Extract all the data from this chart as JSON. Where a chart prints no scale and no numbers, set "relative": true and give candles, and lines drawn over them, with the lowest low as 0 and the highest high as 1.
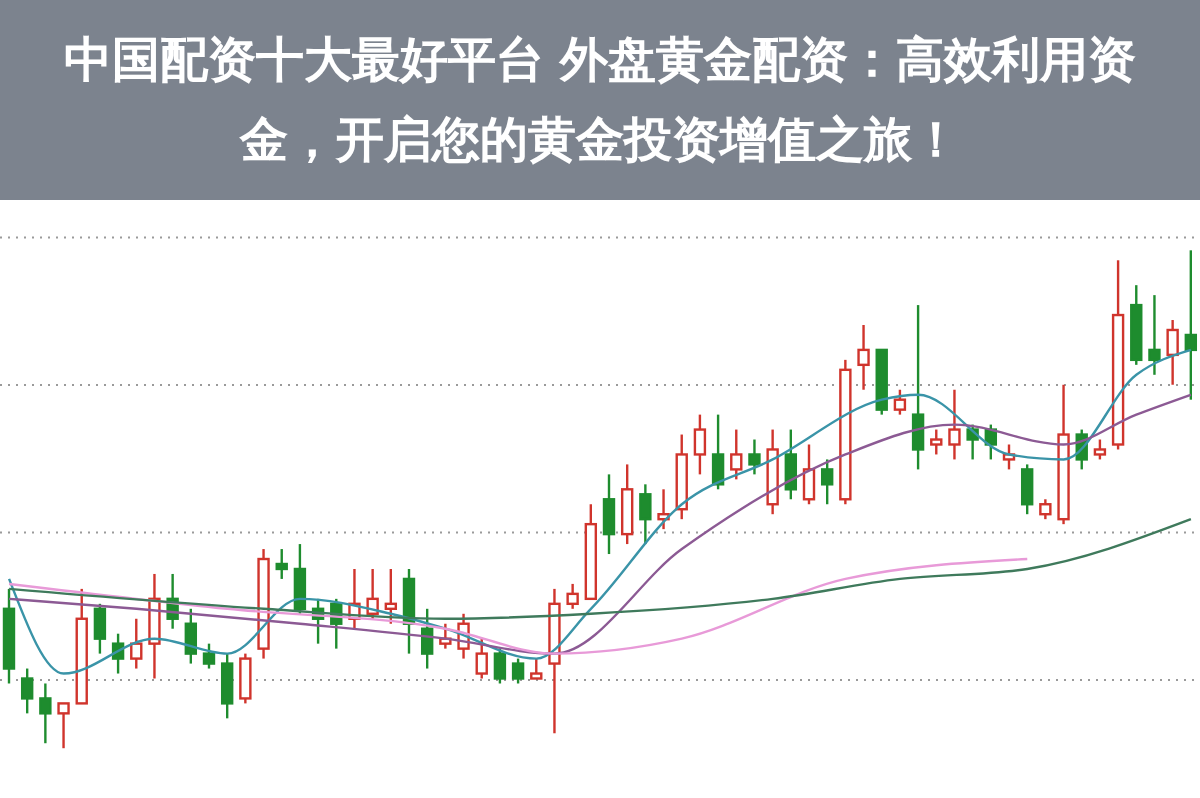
{
  "chart_data": {
    "type": "candlestick",
    "title": "中国配资十大最好平台 外盘黄金配资：高效利用资金，开启您的黄金投资增值之旅！",
    "relative": true,
    "grid": "y",
    "categories": [
      null,
      null,
      null,
      null,
      null,
      null,
      null,
      null,
      null,
      null,
      null,
      null,
      null,
      null,
      null,
      null,
      null,
      null,
      null,
      null,
      null,
      null,
      null,
      null,
      null,
      null,
      null,
      null,
      null,
      null,
      null,
      null,
      null,
      null,
      null,
      null,
      null,
      null,
      null,
      null,
      null,
      null,
      null,
      null,
      null,
      null,
      null,
      null,
      null,
      null,
      null,
      null,
      null,
      null,
      null,
      null,
      null,
      null,
      null,
      null,
      null,
      null,
      null,
      null,
      null,
      null
    ],
    "ohlc": [
      [
        0.28,
        0.32,
        0.13,
        0.16
      ],
      [
        0.14,
        0.16,
        0.07,
        0.1
      ],
      [
        0.1,
        0.13,
        0.01,
        0.07
      ],
      [
        0.07,
        0.09,
        0,
        0.09
      ],
      [
        0.09,
        0.32,
        0.09,
        0.26
      ],
      [
        0.28,
        0.29,
        0.19,
        0.22
      ],
      [
        0.21,
        0.23,
        0.15,
        0.18
      ],
      [
        0.18,
        0.26,
        0.16,
        0.21
      ],
      [
        0.21,
        0.35,
        0.14,
        0.3
      ],
      [
        0.3,
        0.35,
        0.24,
        0.26
      ],
      [
        0.25,
        0.28,
        0.17,
        0.19
      ],
      [
        0.19,
        0.21,
        0.16,
        0.17
      ],
      [
        0.17,
        0.19,
        0.06,
        0.09
      ],
      [
        0.1,
        0.19,
        0.09,
        0.18
      ],
      [
        0.2,
        0.4,
        0.18,
        0.38
      ],
      [
        0.37,
        0.4,
        0.34,
        0.36
      ],
      [
        0.36,
        0.41,
        0.27,
        0.28
      ],
      [
        0.28,
        0.3,
        0.21,
        0.26
      ],
      [
        0.29,
        0.3,
        0.2,
        0.25
      ],
      [
        0.26,
        0.36,
        0.24,
        0.29
      ],
      [
        0.27,
        0.36,
        0.26,
        0.3
      ],
      [
        0.28,
        0.36,
        0.25,
        0.29
      ],
      [
        0.34,
        0.36,
        0.19,
        0.25
      ],
      [
        0.24,
        0.28,
        0.16,
        0.19
      ],
      [
        0.21,
        0.25,
        0.2,
        0.22
      ],
      [
        0.2,
        0.27,
        0.18,
        0.25
      ],
      [
        0.15,
        0.22,
        0.14,
        0.19
      ],
      [
        0.19,
        0.2,
        0.13,
        0.14
      ],
      [
        0.17,
        0.18,
        0.13,
        0.14
      ],
      [
        0.14,
        0.18,
        0.14,
        0.15
      ],
      [
        0.17,
        0.32,
        0.03,
        0.29
      ],
      [
        0.29,
        0.33,
        0.28,
        0.31
      ],
      [
        0.3,
        0.49,
        0.3,
        0.45
      ],
      [
        0.5,
        0.55,
        0.39,
        0.43
      ],
      [
        0.43,
        0.57,
        0.41,
        0.52
      ],
      [
        0.51,
        0.53,
        0.41,
        0.46
      ],
      [
        0.46,
        0.52,
        0.44,
        0.47
      ],
      [
        0.48,
        0.63,
        0.46,
        0.59
      ],
      [
        0.59,
        0.67,
        0.55,
        0.64
      ],
      [
        0.59,
        0.67,
        0.52,
        0.53
      ],
      [
        0.56,
        0.64,
        0.54,
        0.59
      ],
      [
        0.59,
        0.62,
        0.55,
        0.57
      ],
      [
        0.49,
        0.64,
        0.47,
        0.6
      ],
      [
        0.59,
        0.64,
        0.5,
        0.52
      ],
      [
        0.5,
        0.61,
        0.49,
        0.56
      ],
      [
        0.56,
        0.58,
        0.49,
        0.53
      ],
      [
        0.5,
        0.78,
        0.49,
        0.76
      ],
      [
        0.77,
        0.85,
        0.72,
        0.8
      ],
      [
        0.8,
        0.8,
        0.67,
        0.68
      ],
      [
        0.68,
        0.72,
        0.67,
        0.7
      ],
      [
        0.67,
        0.89,
        0.56,
        0.6
      ],
      [
        0.61,
        0.64,
        0.59,
        0.62
      ],
      [
        0.61,
        0.72,
        0.58,
        0.64
      ],
      [
        0.64,
        0.65,
        0.58,
        0.62
      ],
      [
        0.64,
        0.65,
        0.58,
        0.61
      ],
      [
        0.58,
        0.61,
        0.56,
        0.59
      ],
      [
        0.56,
        0.57,
        0.47,
        0.49
      ],
      [
        0.47,
        0.5,
        0.46,
        0.49
      ],
      [
        0.46,
        0.73,
        0.45,
        0.63
      ],
      [
        0.63,
        0.64,
        0.56,
        0.58
      ],
      [
        0.59,
        0.62,
        0.58,
        0.6
      ],
      [
        0.61,
        0.98,
        0.6,
        0.87
      ],
      [
        0.89,
        0.93,
        0.77,
        0.78
      ],
      [
        0.8,
        0.91,
        0.75,
        0.78
      ],
      [
        0.79,
        0.86,
        0.73,
        0.84
      ],
      [
        0.83,
        1,
        0.7,
        0.8
      ]
    ],
    "colors": [
      "#1e8c2e",
      "#1e8c2e",
      "#1e8c2e",
      "#d0342c",
      "#d0342c",
      "#1e8c2e",
      "#1e8c2e",
      "#d0342c",
      "#d0342c",
      "#1e8c2e",
      "#1e8c2e",
      "#1e8c2e",
      "#1e8c2e",
      "#d0342c",
      "#d0342c",
      "#1e8c2e",
      "#1e8c2e",
      "#1e8c2e",
      "#1e8c2e",
      "#d0342c",
      "#d0342c",
      "#d0342c",
      "#1e8c2e",
      "#1e8c2e",
      "#d0342c",
      "#d0342c",
      "#d0342c",
      "#1e8c2e",
      "#1e8c2e",
      "#d0342c",
      "#d0342c",
      "#d0342c",
      "#d0342c",
      "#1e8c2e",
      "#d0342c",
      "#1e8c2e",
      "#d0342c",
      "#d0342c",
      "#d0342c",
      "#1e8c2e",
      "#d0342c",
      "#1e8c2e",
      "#d0342c",
      "#1e8c2e",
      "#d0342c",
      "#1e8c2e",
      "#d0342c",
      "#d0342c",
      "#1e8c2e",
      "#d0342c",
      "#1e8c2e",
      "#d0342c",
      "#d0342c",
      "#1e8c2e",
      "#1e8c2e",
      "#d0342c",
      "#1e8c2e",
      "#d0342c",
      "#d0342c",
      "#1e8c2e",
      "#d0342c",
      "#d0342c",
      "#1e8c2e",
      "#1e8c2e",
      "#d0342c",
      "#1e8c2e"
    ],
    "series": [
      {
        "type": "line",
        "color": "#3a94a8",
        "values": [
          0.34,
          null,
          null,
          0.15,
          null,
          null,
          null,
          null,
          0.22,
          null,
          null,
          null,
          0.19,
          null,
          null,
          null,
          0.3,
          null,
          null,
          null,
          null,
          0.27,
          null,
          null,
          0.24,
          null,
          null,
          null,
          null,
          0.18,
          null,
          null,
          0.28,
          null,
          null,
          null,
          null,
          0.49,
          null,
          null,
          null,
          null,
          0.58,
          null,
          null,
          null,
          null,
          null,
          0.7,
          null,
          0.71,
          null,
          null,
          null,
          null,
          0.59,
          null,
          null,
          0.58,
          null,
          null,
          null,
          0.75,
          null,
          null,
          0.8
        ]
      },
      {
        "type": "line",
        "color": "#8c5a94",
        "values": [
          0.3,
          null,
          null,
          null,
          null,
          null,
          null,
          0.28,
          null,
          null,
          null,
          null,
          null,
          null,
          null,
          null,
          0.25,
          null,
          null,
          null,
          null,
          null,
          null,
          null,
          0.22,
          null,
          null,
          null,
          null,
          null,
          0.19,
          null,
          null,
          null,
          null,
          null,
          null,
          0.4,
          null,
          null,
          null,
          null,
          null,
          null,
          null,
          null,
          0.59,
          null,
          null,
          null,
          null,
          null,
          0.65,
          null,
          null,
          null,
          null,
          null,
          0.61,
          null,
          null,
          null,
          0.67,
          null,
          null,
          0.71
        ]
      },
      {
        "type": "line",
        "color": "#e89ad8",
        "values": [
          0.33,
          null,
          null,
          null,
          null,
          null,
          null,
          null,
          null,
          null,
          null,
          null,
          0.28,
          null,
          null,
          null,
          null,
          null,
          null,
          null,
          null,
          null,
          null,
          null,
          0.24,
          null,
          null,
          null,
          null,
          null,
          0.19,
          null,
          null,
          null,
          null,
          null,
          null,
          0.22,
          null,
          null,
          null,
          null,
          null,
          null,
          null,
          null,
          0.34,
          null,
          null,
          null,
          null,
          null,
          null,
          null,
          null,
          null,
          0.38,
          null,
          null,
          null,
          null,
          null,
          null,
          null,
          null,
          null
        ]
      },
      {
        "type": "line",
        "color": "#3f7a5c",
        "values": [
          0.32,
          null,
          null,
          null,
          null,
          null,
          null,
          null,
          null,
          null,
          null,
          null,
          null,
          null,
          0.28,
          null,
          null,
          null,
          null,
          null,
          null,
          null,
          null,
          null,
          0.26,
          null,
          null,
          null,
          null,
          null,
          null,
          null,
          0.27,
          null,
          null,
          null,
          null,
          null,
          null,
          null,
          null,
          null,
          0.3,
          null,
          null,
          null,
          null,
          null,
          null,
          0.34,
          null,
          null,
          null,
          null,
          null,
          null,
          0.36,
          null,
          null,
          null,
          null,
          null,
          null,
          null,
          null,
          0.46
        ]
      }
    ]
  }
}
